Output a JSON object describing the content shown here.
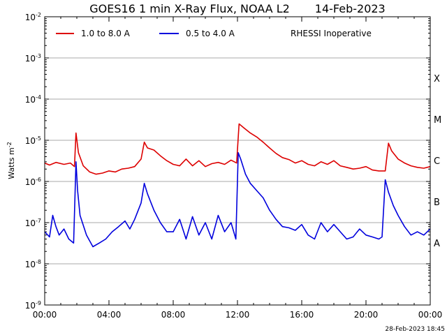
{
  "chart_data": {
    "type": "line",
    "title": "GOES16 1 min X-Ray Flux, NOAA L2",
    "date": "14-Feb-2023",
    "ylabel_base": "Watts m",
    "ylabel_exp": "-2",
    "y_scale": "log",
    "ylim": [
      1e-09,
      0.01
    ],
    "y_ticks": [
      {
        "base": "10",
        "exp": "-9"
      },
      {
        "base": "10",
        "exp": "-8"
      },
      {
        "base": "10",
        "exp": "-7"
      },
      {
        "base": "10",
        "exp": "-6"
      },
      {
        "base": "10",
        "exp": "-5"
      },
      {
        "base": "10",
        "exp": "-4"
      },
      {
        "base": "10",
        "exp": "-3"
      },
      {
        "base": "10",
        "exp": "-2"
      }
    ],
    "x_ticks": [
      "00:00",
      "04:00",
      "08:00",
      "12:00",
      "16:00",
      "20:00",
      "00:00"
    ],
    "xlim_hours": [
      0,
      24
    ],
    "grid": "horizontal",
    "flare_classes": [
      {
        "label": "A",
        "value": 1e-08
      },
      {
        "label": "B",
        "value": 1e-07
      },
      {
        "label": "C",
        "value": 1e-06
      },
      {
        "label": "M",
        "value": 1e-05
      },
      {
        "label": "X",
        "value": 0.0001
      }
    ],
    "legend_placement": "top-left",
    "note": "RHESSI Inoperative",
    "timestamp": "28-Feb-2023 18:45",
    "series": [
      {
        "name": "1.0 to 8.0 A",
        "color": "#dd0000",
        "x": [
          0,
          0.3,
          0.7,
          1.2,
          1.6,
          1.85,
          1.95,
          2.1,
          2.4,
          2.8,
          3.2,
          3.6,
          4.0,
          4.4,
          4.8,
          5.2,
          5.6,
          6.0,
          6.2,
          6.4,
          6.8,
          7.2,
          7.6,
          8.0,
          8.4,
          8.8,
          9.2,
          9.6,
          10.0,
          10.4,
          10.8,
          11.2,
          11.6,
          11.95,
          12.1,
          12.4,
          12.8,
          13.2,
          13.6,
          14.0,
          14.4,
          14.8,
          15.2,
          15.6,
          16.0,
          16.4,
          16.8,
          17.2,
          17.6,
          18.0,
          18.4,
          18.8,
          19.2,
          19.6,
          20.0,
          20.4,
          20.8,
          21.2,
          21.4,
          21.6,
          22.0,
          22.4,
          22.8,
          23.2,
          23.6,
          24.0
        ],
        "y": [
          2.8e-06,
          2.5e-06,
          2.9e-06,
          2.6e-06,
          2.8e-06,
          2.3e-06,
          1.5e-05,
          5e-06,
          2.4e-06,
          1.7e-06,
          1.5e-06,
          1.6e-06,
          1.8e-06,
          1.7e-06,
          2e-06,
          2.1e-06,
          2.3e-06,
          3.5e-06,
          9e-06,
          6.5e-06,
          5.8e-06,
          4.2e-06,
          3.2e-06,
          2.6e-06,
          2.4e-06,
          3.5e-06,
          2.4e-06,
          3.2e-06,
          2.3e-06,
          2.7e-06,
          2.9e-06,
          2.6e-06,
          3.3e-06,
          2.8e-06,
          2.5e-05,
          2e-05,
          1.5e-05,
          1.2e-05,
          9e-06,
          6.5e-06,
          4.8e-06,
          3.8e-06,
          3.4e-06,
          2.8e-06,
          3.2e-06,
          2.6e-06,
          2.4e-06,
          3e-06,
          2.6e-06,
          3.2e-06,
          2.4e-06,
          2.2e-06,
          2e-06,
          2.1e-06,
          2.3e-06,
          1.9e-06,
          1.8e-06,
          1.8e-06,
          8.5e-06,
          5.5e-06,
          3.5e-06,
          2.8e-06,
          2.4e-06,
          2.2e-06,
          2.1e-06,
          2.3e-06
        ]
      },
      {
        "name": "0.5 to 4.0 A",
        "color": "#0000dd",
        "x": [
          0,
          0.3,
          0.5,
          0.7,
          0.9,
          1.2,
          1.5,
          1.8,
          1.95,
          2.05,
          2.2,
          2.6,
          3.0,
          3.4,
          3.8,
          4.2,
          4.6,
          5.0,
          5.3,
          5.6,
          6.0,
          6.2,
          6.4,
          6.8,
          7.2,
          7.6,
          8.0,
          8.4,
          8.8,
          9.2,
          9.6,
          10.0,
          10.4,
          10.8,
          11.2,
          11.6,
          11.9,
          12.05,
          12.2,
          12.5,
          12.8,
          13.2,
          13.6,
          14.0,
          14.4,
          14.8,
          15.2,
          15.6,
          16.0,
          16.4,
          16.8,
          17.2,
          17.6,
          18.0,
          18.4,
          18.8,
          19.2,
          19.6,
          20.0,
          20.4,
          20.8,
          21.0,
          21.2,
          21.4,
          21.7,
          22.0,
          22.4,
          22.8,
          23.2,
          23.6,
          24.0
        ],
        "y": [
          6e-08,
          4.5e-08,
          1.5e-07,
          8e-08,
          5e-08,
          7e-08,
          4e-08,
          3.2e-08,
          3e-06,
          6e-07,
          1.5e-07,
          5e-08,
          2.6e-08,
          3.2e-08,
          4e-08,
          6e-08,
          8e-08,
          1.1e-07,
          7e-08,
          1.2e-07,
          3e-07,
          9e-07,
          5e-07,
          2e-07,
          1e-07,
          6e-08,
          6e-08,
          1.2e-07,
          4e-08,
          1.4e-07,
          5e-08,
          1e-07,
          4e-08,
          1.5e-07,
          6e-08,
          1e-07,
          4e-08,
          5e-06,
          3.5e-06,
          1.5e-06,
          9e-07,
          6e-07,
          4e-07,
          2e-07,
          1.2e-07,
          8e-08,
          7.5e-08,
          6.5e-08,
          9e-08,
          5e-08,
          4e-08,
          1e-07,
          6e-08,
          9e-08,
          6e-08,
          4e-08,
          4.5e-08,
          7e-08,
          5e-08,
          4.5e-08,
          4e-08,
          4.5e-08,
          1.1e-06,
          5.5e-07,
          2.6e-07,
          1.5e-07,
          8e-08,
          5e-08,
          6e-08,
          5e-08,
          7e-08
        ]
      }
    ]
  }
}
